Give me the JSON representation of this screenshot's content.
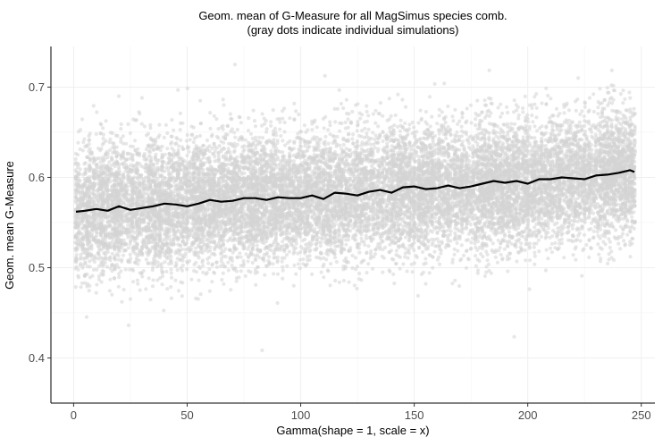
{
  "chart_data": {
    "type": "scatter",
    "title": "Geom. mean of G-Measure for all MagSimus species comb.",
    "subtitle": "(gray dots indicate individual simulations)",
    "xlabel": "Gamma(shape = 1, scale = x)",
    "ylabel": "Geom. mean G-Measure",
    "xlim": [
      -10,
      256
    ],
    "ylim": [
      0.35,
      0.745
    ],
    "x_ticks": [
      0,
      50,
      100,
      150,
      200,
      250
    ],
    "y_ticks": [
      0.4,
      0.5,
      0.6,
      0.7
    ],
    "x_tick_labels": [
      "0",
      "50",
      "100",
      "150",
      "200",
      "250"
    ],
    "y_tick_labels": [
      "0.4",
      "0.5",
      "0.6",
      "0.7"
    ],
    "grid": true,
    "legend": "none",
    "series": [
      {
        "kind": "points",
        "color": "#d3d3d3",
        "x_range": [
          1,
          247
        ],
        "x_step": 1,
        "center": {
          "x": [
            1,
            50,
            100,
            150,
            200,
            247
          ],
          "y": [
            0.563,
            0.573,
            0.578,
            0.587,
            0.592,
            0.608
          ]
        },
        "spread": 0.035,
        "points_per_x": 60
      },
      {
        "kind": "line",
        "color": "#000000",
        "x": [
          1,
          5,
          10,
          15,
          20,
          25,
          30,
          35,
          40,
          45,
          50,
          55,
          60,
          65,
          70,
          75,
          80,
          85,
          90,
          95,
          100,
          105,
          110,
          115,
          120,
          125,
          130,
          135,
          140,
          145,
          150,
          155,
          160,
          165,
          170,
          175,
          180,
          185,
          190,
          195,
          200,
          205,
          210,
          215,
          220,
          225,
          230,
          235,
          240,
          245,
          247
        ],
        "y": [
          0.562,
          0.563,
          0.565,
          0.563,
          0.568,
          0.564,
          0.566,
          0.568,
          0.571,
          0.57,
          0.568,
          0.571,
          0.575,
          0.573,
          0.574,
          0.577,
          0.577,
          0.575,
          0.578,
          0.577,
          0.577,
          0.58,
          0.576,
          0.583,
          0.582,
          0.58,
          0.584,
          0.586,
          0.583,
          0.589,
          0.59,
          0.587,
          0.588,
          0.591,
          0.588,
          0.59,
          0.593,
          0.596,
          0.594,
          0.596,
          0.593,
          0.598,
          0.598,
          0.6,
          0.599,
          0.598,
          0.602,
          0.603,
          0.605,
          0.608,
          0.606
        ]
      }
    ]
  }
}
